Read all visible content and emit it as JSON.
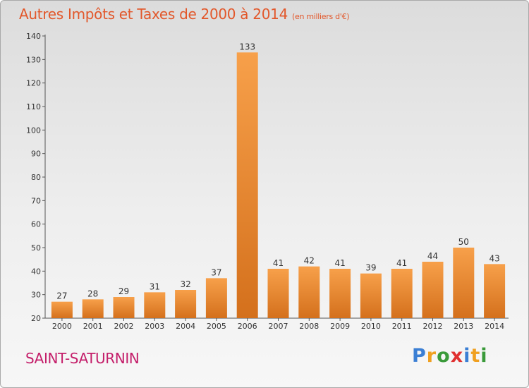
{
  "header": {
    "title": "Autres Impôts et Taxes de 2000 à 2014",
    "unit": "(en milliers d'€)"
  },
  "commune": "SAINT-SATURNIN",
  "logo": {
    "text": "Proxiti",
    "letters": [
      "P",
      "r",
      "o",
      "x",
      "i",
      "t",
      "i"
    ],
    "colors": [
      "#3b7fd4",
      "#f0a020",
      "#3a9a3a",
      "#e03030",
      "#3b7fd4",
      "#f0a020",
      "#3a9a3a"
    ]
  },
  "colors": {
    "bar_light": "#f7a04a",
    "bar_dark": "#d4701c",
    "title": "#e2572a",
    "commune": "#c41e6a"
  },
  "chart_data": {
    "type": "bar",
    "title": "Autres Impôts et Taxes de 2000 à 2014",
    "categories": [
      "2000",
      "2001",
      "2002",
      "2003",
      "2004",
      "2005",
      "2006",
      "2007",
      "2008",
      "2009",
      "2010",
      "2011",
      "2012",
      "2013",
      "2014"
    ],
    "values": [
      27,
      28,
      29,
      31,
      32,
      37,
      133,
      41,
      42,
      41,
      39,
      41,
      44,
      50,
      43
    ],
    "ylim": [
      20,
      140
    ],
    "yticks": [
      20,
      30,
      40,
      50,
      60,
      70,
      80,
      90,
      100,
      110,
      120,
      130,
      140
    ],
    "xlabel": "",
    "ylabel": "",
    "grid": false
  }
}
